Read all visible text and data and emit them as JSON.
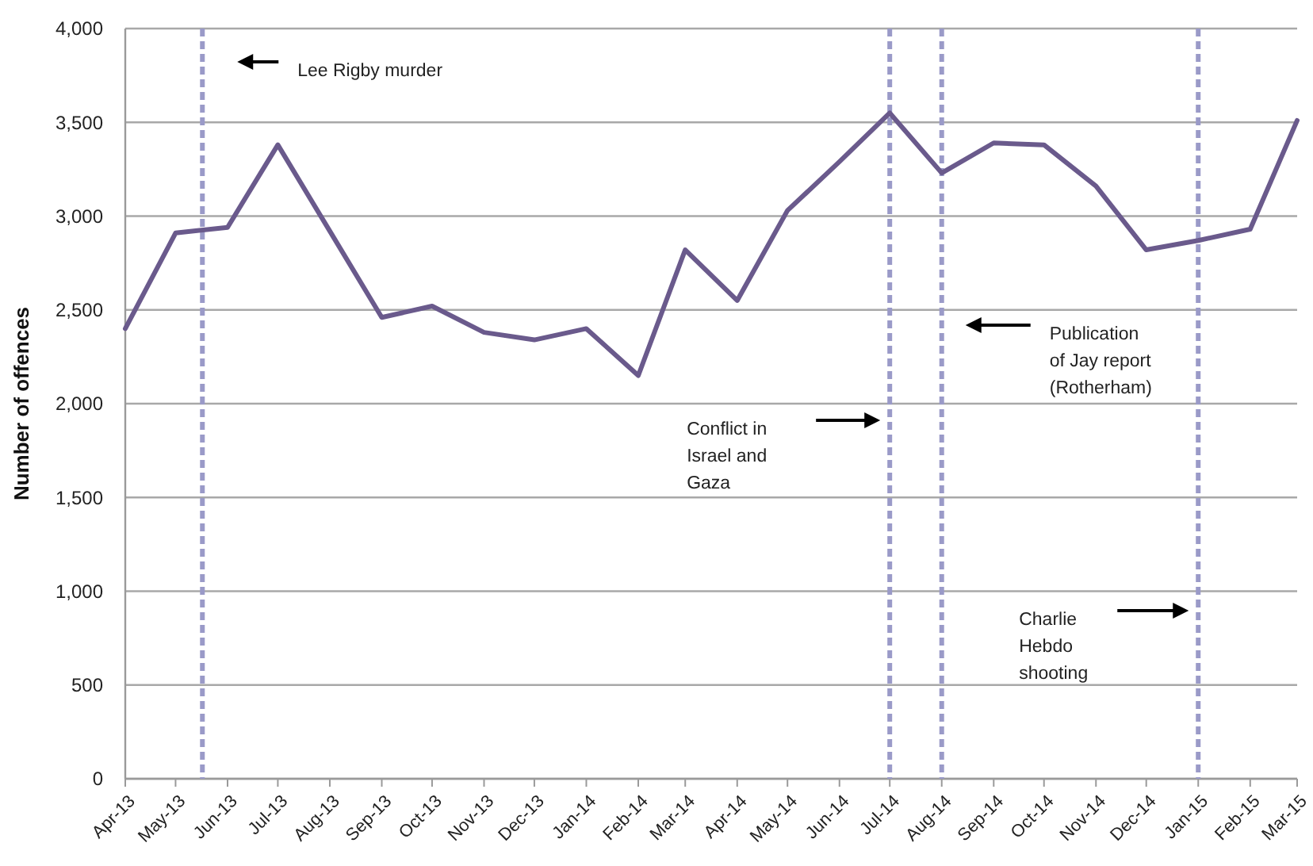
{
  "chart_data": {
    "type": "line",
    "ylabel": "Number of offences",
    "x": [
      "2013-04",
      "2013-05",
      "2013-06",
      "2013-07",
      "2013-08",
      "2013-09",
      "2013-10",
      "2013-11",
      "2013-12",
      "2014-01",
      "2014-02",
      "2014-03",
      "2014-04",
      "2014-05",
      "2014-06",
      "2014-07",
      "2014-08",
      "2014-09",
      "2014-10",
      "2014-11",
      "2014-12",
      "2015-01",
      "2015-02",
      "2015-03"
    ],
    "series": [
      {
        "color": "#6a5a8c",
        "values": [
          2400,
          2910,
          2940,
          3380,
          2920,
          2460,
          2520,
          2380,
          2340,
          2400,
          2150,
          2820,
          2550,
          3030,
          3290,
          3550,
          3230,
          3390,
          3380,
          3160,
          2820,
          2870,
          2930,
          3510
        ]
      }
    ],
    "xlim": [
      "2013-04",
      "2015-03"
    ],
    "xticks": [
      {
        "value": "2013-04",
        "label": "Apr-13"
      },
      {
        "value": "2013-05",
        "label": "May-13"
      },
      {
        "value": "2013-06",
        "label": "Jun-13"
      },
      {
        "value": "2013-07",
        "label": "Jul-13"
      },
      {
        "value": "2013-08",
        "label": "Aug-13"
      },
      {
        "value": "2013-09",
        "label": "Sep-13"
      },
      {
        "value": "2013-10",
        "label": "Oct-13"
      },
      {
        "value": "2013-11",
        "label": "Nov-13"
      },
      {
        "value": "2013-12",
        "label": "Dec-13"
      },
      {
        "value": "2014-01",
        "label": "Jan-14"
      },
      {
        "value": "2014-02",
        "label": "Feb-14"
      },
      {
        "value": "2014-03",
        "label": "Mar-14"
      },
      {
        "value": "2014-04",
        "label": "Apr-14"
      },
      {
        "value": "2014-05",
        "label": "May-14"
      },
      {
        "value": "2014-06",
        "label": "Jun-14"
      },
      {
        "value": "2014-07",
        "label": "Jul-14"
      },
      {
        "value": "2014-08",
        "label": "Aug-14"
      },
      {
        "value": "2014-09",
        "label": "Sep-14"
      },
      {
        "value": "2014-10",
        "label": "Oct-14"
      },
      {
        "value": "2014-11",
        "label": "Nov-14"
      },
      {
        "value": "2014-12",
        "label": "Dec-14"
      },
      {
        "value": "2015-01",
        "label": "Jan-15"
      },
      {
        "value": "2015-02",
        "label": "Feb-15"
      },
      {
        "value": "2015-03",
        "label": "Mar-15"
      }
    ],
    "ylim": [
      0,
      4000
    ],
    "yticks": [
      0,
      500,
      {
        "value": 1000,
        "label": "1,000"
      },
      {
        "value": 1500,
        "label": "1,500"
      },
      {
        "value": 2000,
        "label": "2,000"
      },
      {
        "value": 2500,
        "label": "2,500"
      },
      {
        "value": 3000,
        "label": "3,000"
      },
      {
        "value": 3500,
        "label": "3,500"
      },
      {
        "value": 4000,
        "label": "4,000"
      }
    ],
    "grid": "y",
    "marker": "none",
    "line_style": "solid",
    "annotations": [
      "Lee Rigby murder",
      "Conflict in Israel and Gaza",
      "Publication of Jay report (Rotherham)",
      "Charlie Hebdo shooting"
    ],
    "ref_lines": [
      {
        "axis": "x",
        "value": "2013-05-17",
        "color": "#9a9ac8",
        "line_style": "dashed"
      },
      {
        "axis": "x",
        "value": "2014-07-01",
        "color": "#9a9ac8",
        "line_style": "dashed"
      },
      {
        "axis": "x",
        "value": "2014-08-01",
        "color": "#9a9ac8",
        "line_style": "dashed"
      },
      {
        "axis": "x",
        "value": "2015-01-01",
        "color": "#9a9ac8",
        "line_style": "dashed"
      }
    ]
  }
}
